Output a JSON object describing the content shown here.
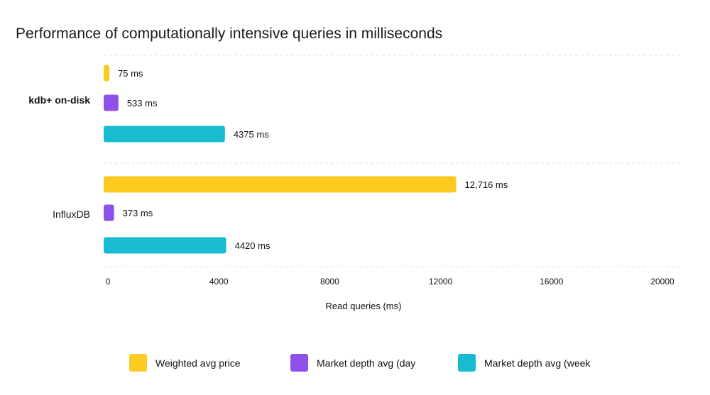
{
  "chart_data": {
    "type": "bar",
    "orientation": "horizontal",
    "title": "Performance of computationally intensive queries in milliseconds",
    "xlabel": "Read queries (ms)",
    "ylabel": "",
    "xlim": [
      0,
      20000
    ],
    "x_ticks": [
      "0",
      "4000",
      "8000",
      "12000",
      "16000",
      "20000"
    ],
    "grid": "horizontal dashed separators",
    "legend_position": "bottom",
    "categories": [
      "kdb+ on-disk",
      "InfluxDB"
    ],
    "series": [
      {
        "name": "Weighted avg price",
        "color": "#FDCB1F",
        "values": [
          75,
          12716
        ],
        "labels": [
          "75 ms",
          "12,716 ms"
        ]
      },
      {
        "name": "Market depth avg (day",
        "color": "#8E4FEA",
        "values": [
          533,
          373
        ],
        "labels": [
          "533 ms",
          "373 ms"
        ]
      },
      {
        "name": "Market depth avg (week",
        "color": "#17BCD0",
        "values": [
          4375,
          4420
        ],
        "labels": [
          "4375 ms",
          "4420 ms"
        ]
      }
    ]
  }
}
